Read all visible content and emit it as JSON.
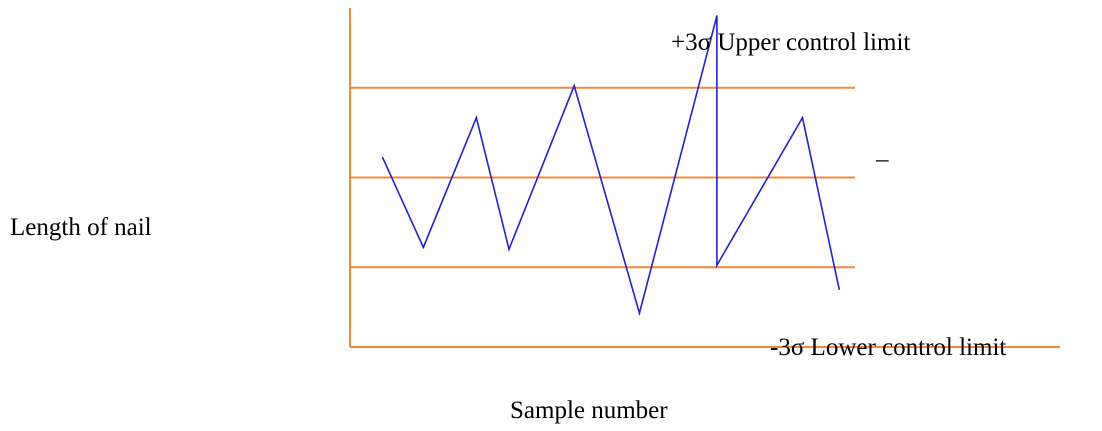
{
  "chart_data": {
    "type": "line",
    "title": "",
    "xlabel": "Sample number",
    "ylabel": "Length of nail",
    "xlim": [
      0,
      17
    ],
    "ylim": [
      -4.75,
      3.75
    ],
    "grid": false,
    "legend": "none",
    "series": [
      {
        "color": "#2222cc",
        "points": [
          [
            0.8,
            0.0
          ],
          [
            1.8,
            -2.25
          ],
          [
            3.1,
            1.0
          ],
          [
            3.9,
            -2.3
          ],
          [
            5.5,
            1.8
          ],
          [
            7.1,
            -3.9
          ],
          [
            9.0,
            3.55
          ],
          [
            9.0,
            -2.7
          ],
          [
            11.1,
            1.0
          ],
          [
            12.0,
            -3.3
          ]
        ]
      }
    ],
    "reference_lines": [
      {
        "label": "+3σ Upper control limit",
        "value": 1.75,
        "color": "#f08a3a"
      },
      {
        "label": "–",
        "value": -0.5,
        "color": "#f08a3a"
      },
      {
        "label": "-3σ Lower control limit",
        "value": -2.75,
        "color": "#f08a3a"
      }
    ],
    "axis_color": "#f08a3a"
  }
}
